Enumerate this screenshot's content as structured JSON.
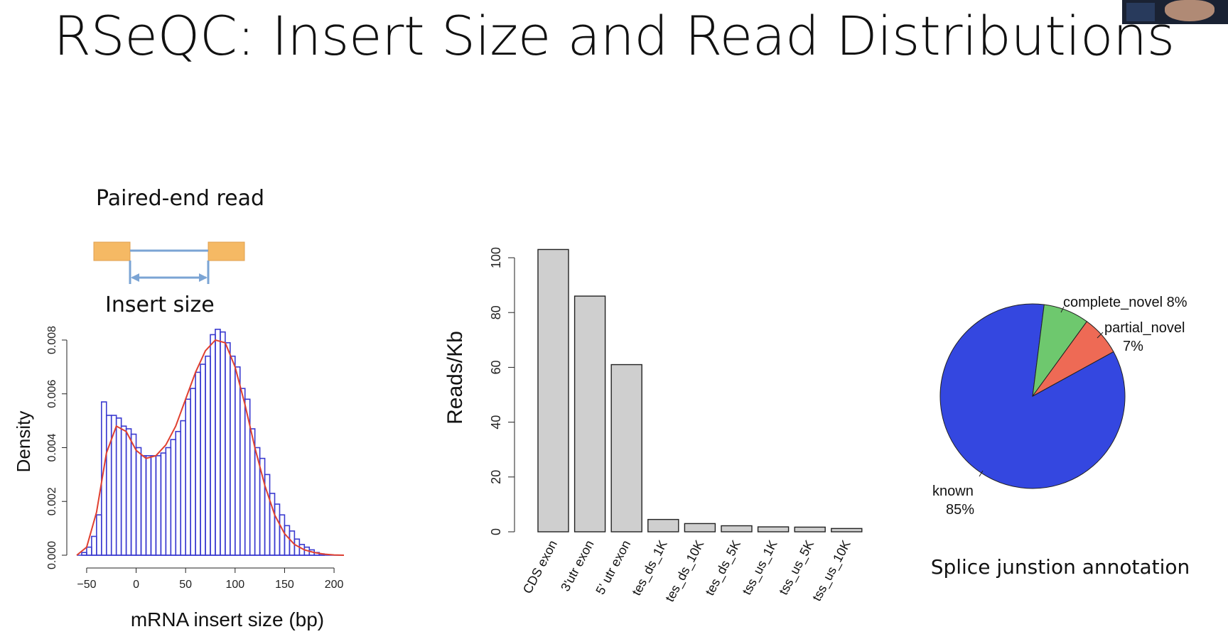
{
  "slide": {
    "title": "RSeQC: Insert Size and Read Distributions"
  },
  "schematic": {
    "top_label": "Paired-end read",
    "bottom_label": "Insert size",
    "colors": {
      "read": "#f5b964",
      "line": "#7ba4d4"
    }
  },
  "chart_data": [
    {
      "type": "bar",
      "subtype": "histogram-with-density",
      "xlabel": "mRNA insert size (bp)",
      "ylabel": "Density",
      "xlim": [
        -60,
        210
      ],
      "ylim": [
        0,
        0.0085
      ],
      "x_ticks": [
        -50,
        0,
        50,
        100,
        150,
        200
      ],
      "y_ticks": [
        "0.000",
        "0.002",
        "0.004",
        "0.006",
        "0.008"
      ],
      "bin_width": 5,
      "bin_start": -60,
      "values": [
        0.0,
        0.0001,
        0.0003,
        0.0007,
        0.0015,
        0.0057,
        0.0052,
        0.0052,
        0.0051,
        0.0048,
        0.0047,
        0.0045,
        0.004,
        0.0037,
        0.0037,
        0.0037,
        0.0037,
        0.0038,
        0.004,
        0.0043,
        0.0046,
        0.005,
        0.0058,
        0.0062,
        0.0068,
        0.0071,
        0.0074,
        0.0082,
        0.0084,
        0.0083,
        0.0079,
        0.0074,
        0.007,
        0.0062,
        0.0058,
        0.0047,
        0.004,
        0.0036,
        0.003,
        0.0023,
        0.0019,
        0.0015,
        0.0011,
        0.0009,
        0.0006,
        0.0004,
        0.0003,
        0.0002,
        0.0001,
        5e-05,
        0.0,
        0.0,
        0.0,
        0.0
      ],
      "density_curve": {
        "x": [
          -60,
          -50,
          -40,
          -30,
          -20,
          -10,
          0,
          10,
          20,
          30,
          40,
          50,
          60,
          70,
          80,
          90,
          100,
          110,
          120,
          130,
          140,
          150,
          160,
          170,
          180,
          190,
          200,
          210
        ],
        "y": [
          0.0,
          0.0003,
          0.0016,
          0.0038,
          0.0048,
          0.0046,
          0.0039,
          0.0036,
          0.0037,
          0.0041,
          0.0048,
          0.0058,
          0.0068,
          0.0076,
          0.008,
          0.0079,
          0.007,
          0.0056,
          0.004,
          0.0026,
          0.0015,
          0.0008,
          0.0004,
          0.0002,
          0.0001,
          4e-05,
          1e-05,
          0.0
        ]
      },
      "colors": {
        "bars": "#3a3ad0",
        "curve": "#e04030"
      }
    },
    {
      "type": "bar",
      "ylabel": "Reads/Kb",
      "ylim": [
        0,
        105
      ],
      "y_ticks": [
        "0",
        "20",
        "40",
        "60",
        "80",
        "100"
      ],
      "categories": [
        "CDS exon",
        "3'utr exon",
        "5' utr exon",
        "tes_ds_1K",
        "tes_ds_10K",
        "tes_ds_5K",
        "tss_us_1K",
        "tss_us_5K",
        "tss_us_10K"
      ],
      "values": [
        103,
        86,
        61,
        4.5,
        3,
        2.2,
        1.8,
        1.7,
        1.2
      ],
      "colors": {
        "bars": "#cfcfcf",
        "edge": "#222222"
      }
    },
    {
      "type": "pie",
      "title": "Splice junstion annotation",
      "slices": [
        {
          "label": "known",
          "pct_label": "85%",
          "value": 85,
          "color": "#3447e0"
        },
        {
          "label": "complete_novel",
          "pct_label": "8%",
          "value": 8,
          "color": "#6ec86e"
        },
        {
          "label": "partial_novel",
          "pct_label": "7%",
          "value": 7,
          "color": "#ee6a55"
        }
      ]
    }
  ]
}
